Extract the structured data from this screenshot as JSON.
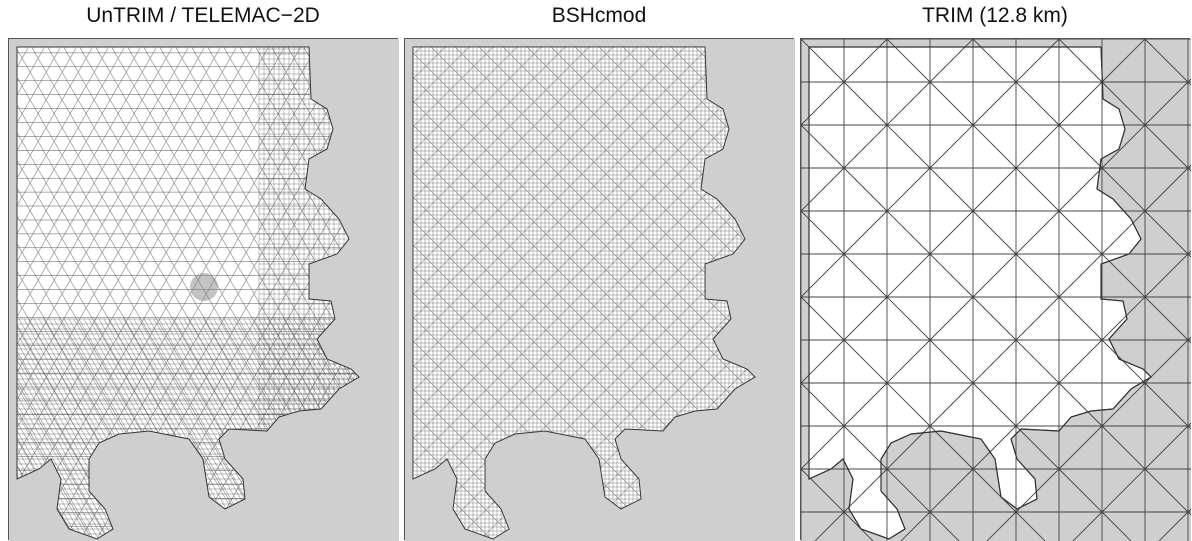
{
  "panels": [
    {
      "title": "UnTRIM / TELEMAC−2D",
      "mesh": "dense-triangular-mesh"
    },
    {
      "title": "BSHcmod",
      "mesh": "fine-regular-grid"
    },
    {
      "title": "TRIM (12.8 km)",
      "mesh": "coarse-triangular-grid"
    }
  ],
  "colors": {
    "land": "#cfcfcf",
    "water": "#ffffff",
    "mesh_dense": "#555555",
    "mesh_fine": "#6a6a6a",
    "mesh_coarse": "#444444",
    "frame": "#555555"
  }
}
